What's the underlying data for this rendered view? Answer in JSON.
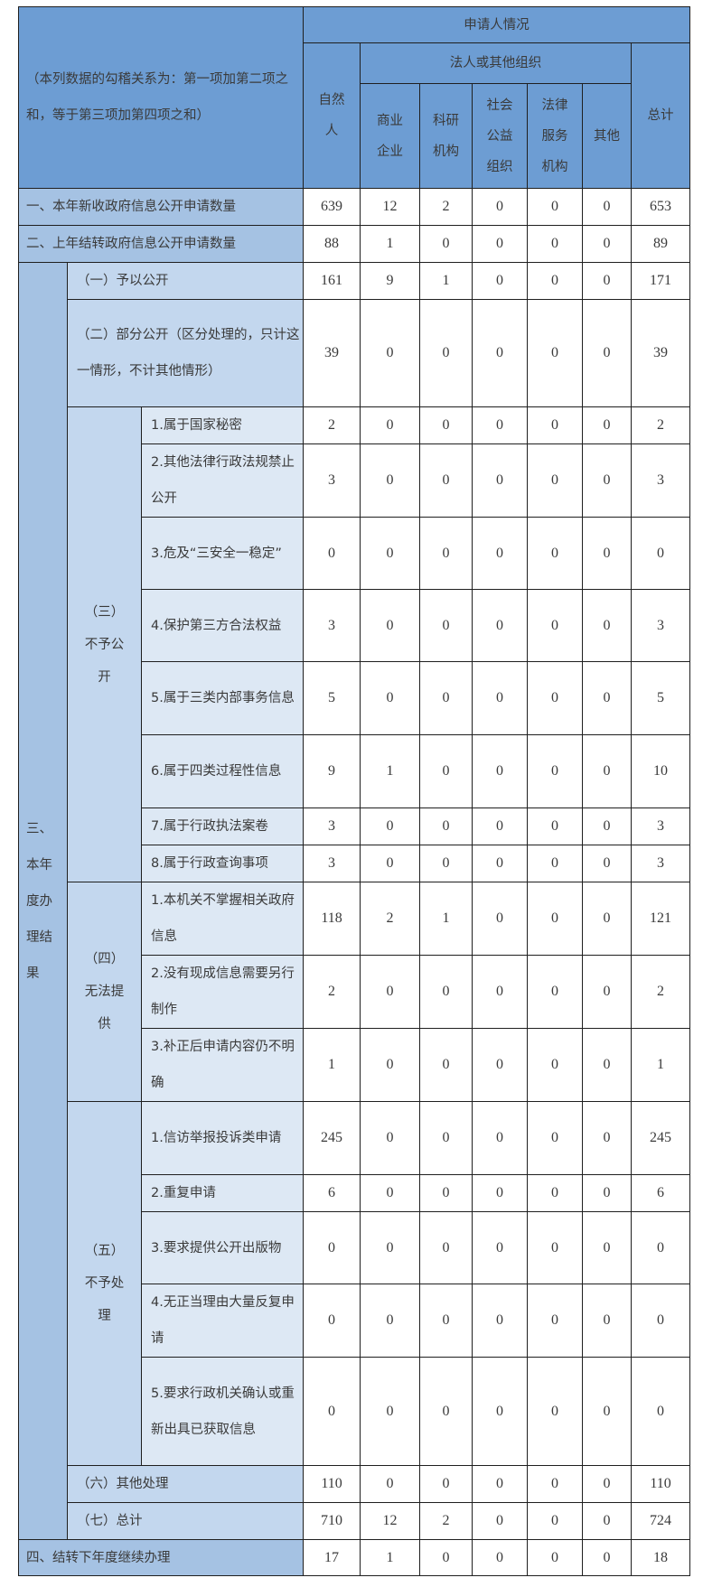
{
  "header": {
    "note": "（本列数据的勾稽关系为：第一项加第二项之和，等于第三项加第四项之和）",
    "applicant": "申请人情况",
    "natural_person": "自然人",
    "legal_org": "法人或其他组织",
    "org_types": [
      "商业企业",
      "科研机构",
      "社会公益组织",
      "法律服务机构",
      "其他"
    ],
    "total": "总计"
  },
  "section3_label": "三、本年度办理结果",
  "group_labels": {
    "g3": "（三）不予公开",
    "g4": "（四）无法提供",
    "g5": "（五）不予处理"
  },
  "rows": [
    {
      "label": "一、本年新收政府信息公开申请数量",
      "values": [
        639,
        12,
        2,
        0,
        0,
        0,
        653
      ]
    },
    {
      "label": "二、上年结转政府信息公开申请数量",
      "values": [
        88,
        1,
        0,
        0,
        0,
        0,
        89
      ]
    },
    {
      "label": "（一）予以公开",
      "values": [
        161,
        9,
        1,
        0,
        0,
        0,
        171
      ]
    },
    {
      "label": "（二）部分公开（区分处理的，只计这一情形，不计其他情形）",
      "values": [
        39,
        0,
        0,
        0,
        0,
        0,
        39
      ]
    },
    {
      "label": "1.属于国家秘密",
      "values": [
        2,
        0,
        0,
        0,
        0,
        0,
        2
      ]
    },
    {
      "label": "2.其他法律行政法规禁止公开",
      "values": [
        3,
        0,
        0,
        0,
        0,
        0,
        3
      ]
    },
    {
      "label": "3.危及“三安全一稳定”",
      "values": [
        0,
        0,
        0,
        0,
        0,
        0,
        0
      ]
    },
    {
      "label": "4.保护第三方合法权益",
      "values": [
        3,
        0,
        0,
        0,
        0,
        0,
        3
      ]
    },
    {
      "label": "5.属于三类内部事务信息",
      "values": [
        5,
        0,
        0,
        0,
        0,
        0,
        5
      ]
    },
    {
      "label": "6.属于四类过程性信息",
      "values": [
        9,
        1,
        0,
        0,
        0,
        0,
        10
      ]
    },
    {
      "label": "7.属于行政执法案卷",
      "values": [
        3,
        0,
        0,
        0,
        0,
        0,
        3
      ]
    },
    {
      "label": "8.属于行政查询事项",
      "values": [
        3,
        0,
        0,
        0,
        0,
        0,
        3
      ]
    },
    {
      "label": "1.本机关不掌握相关政府信息",
      "values": [
        118,
        2,
        1,
        0,
        0,
        0,
        121
      ]
    },
    {
      "label": "2.没有现成信息需要另行制作",
      "values": [
        2,
        0,
        0,
        0,
        0,
        0,
        2
      ]
    },
    {
      "label": "3.补正后申请内容仍不明确",
      "values": [
        1,
        0,
        0,
        0,
        0,
        0,
        1
      ]
    },
    {
      "label": "1.信访举报投诉类申请",
      "values": [
        245,
        0,
        0,
        0,
        0,
        0,
        245
      ]
    },
    {
      "label": "2.重复申请",
      "values": [
        6,
        0,
        0,
        0,
        0,
        0,
        6
      ]
    },
    {
      "label": "3.要求提供公开出版物",
      "values": [
        0,
        0,
        0,
        0,
        0,
        0,
        0
      ]
    },
    {
      "label": "4.无正当理由大量反复申请",
      "values": [
        0,
        0,
        0,
        0,
        0,
        0,
        0
      ]
    },
    {
      "label": "5.要求行政机关确认或重新出具已获取信息",
      "values": [
        0,
        0,
        0,
        0,
        0,
        0,
        0
      ]
    },
    {
      "label": "（六）其他处理",
      "values": [
        110,
        0,
        0,
        0,
        0,
        0,
        110
      ]
    },
    {
      "label": "（七）总计",
      "values": [
        710,
        12,
        2,
        0,
        0,
        0,
        724
      ]
    },
    {
      "label": "四、结转下年度继续办理",
      "values": [
        17,
        1,
        0,
        0,
        0,
        0,
        18
      ]
    }
  ]
}
